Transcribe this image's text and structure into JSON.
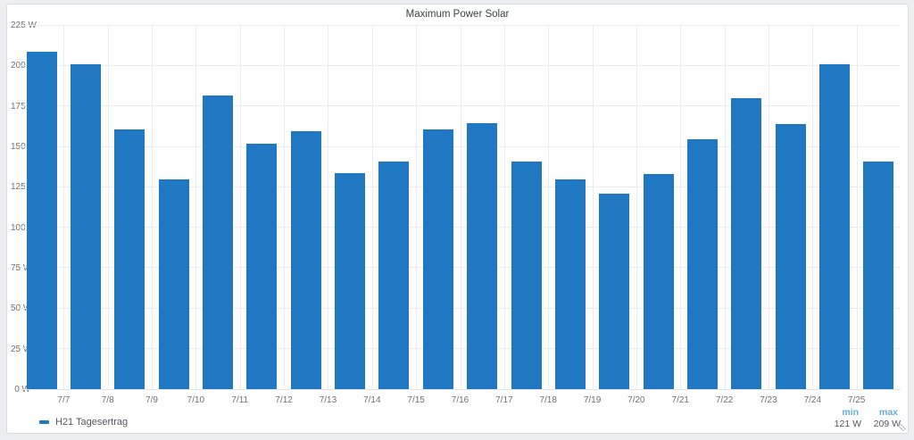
{
  "panel": {
    "title": "Maximum Power Solar"
  },
  "chart_data": {
    "type": "bar",
    "title": "Maximum Power Solar",
    "series": [
      {
        "name": "H21 Tagesertrag",
        "values": [
          209,
          201,
          161,
          130,
          182,
          152,
          160,
          134,
          141,
          161,
          165,
          141,
          130,
          121,
          133,
          155,
          180,
          164,
          201,
          141
        ]
      }
    ],
    "x_tick_labels": [
      "7/7",
      "7/8",
      "7/9",
      "7/10",
      "7/11",
      "7/12",
      "7/13",
      "7/14",
      "7/15",
      "7/16",
      "7/17",
      "7/18",
      "7/19",
      "7/20",
      "7/21",
      "7/22",
      "7/23",
      "7/24",
      "7/25"
    ],
    "x_tick_position": "between-bars",
    "yticks": [
      0,
      25,
      50,
      75,
      100,
      125,
      150,
      175,
      200,
      225
    ],
    "ytick_labels": [
      "0 W",
      "25 W",
      "50 W",
      "75 W",
      "100 W",
      "125 W",
      "150 W",
      "175 W",
      "200 W",
      "225 W"
    ],
    "ylim": [
      0,
      225
    ],
    "unit": "W",
    "grid": true,
    "legend_position": "bottom-left",
    "bar_color": "#1f78c1"
  },
  "legend": {
    "series_label": "H21 Tagesertrag",
    "stats": [
      {
        "label": "min",
        "value": "121 W"
      },
      {
        "label": "max",
        "value": "209 W"
      }
    ]
  },
  "colors": {
    "bar": "#1f78c1",
    "stat_header": "#64aede",
    "axis_text": "#6e7076",
    "grid": "#ececec",
    "panel_background": "#ffffff",
    "page_background": "#edeef1"
  }
}
